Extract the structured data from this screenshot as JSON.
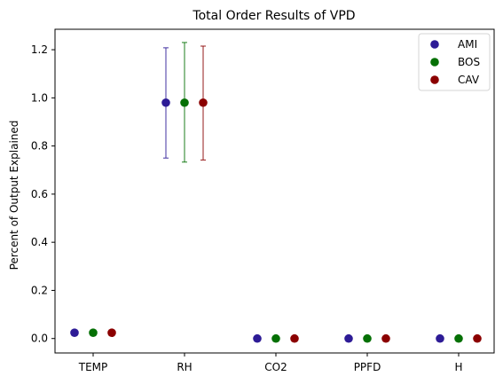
{
  "chart_data": {
    "type": "scatter",
    "title": "Total Order Results of VPD",
    "xlabel": "",
    "ylabel": "Percent of Output Explained",
    "categories": [
      "TEMP",
      "RH",
      "CO2",
      "PPFD",
      "H"
    ],
    "ylim": [
      -0.06,
      1.285
    ],
    "yticks": [
      0.0,
      0.2,
      0.4,
      0.6,
      0.8,
      1.0,
      1.2
    ],
    "yticklabels": [
      "0.0",
      "0.2",
      "0.4",
      "0.6",
      "0.8",
      "1.0",
      "1.2"
    ],
    "grid": false,
    "legend_position": "top-right",
    "series": [
      {
        "name": "AMI",
        "color": "#2d1b96",
        "values": [
          0.024,
          0.98,
          0.0,
          0.0,
          0.0
        ],
        "err_low": [
          null,
          0.75,
          null,
          null,
          null
        ],
        "err_high": [
          null,
          1.208,
          null,
          null,
          null
        ]
      },
      {
        "name": "BOS",
        "color": "#057005",
        "values": [
          0.024,
          0.98,
          0.0,
          0.0,
          0.0
        ],
        "err_low": [
          null,
          0.733,
          null,
          null,
          null
        ],
        "err_high": [
          null,
          1.23,
          null,
          null,
          null
        ]
      },
      {
        "name": "CAV",
        "color": "#8b0000",
        "values": [
          0.024,
          0.98,
          0.0,
          0.0,
          0.0
        ],
        "err_low": [
          null,
          0.742,
          null,
          null,
          null
        ],
        "err_high": [
          null,
          1.215,
          null,
          null,
          null
        ]
      }
    ]
  }
}
